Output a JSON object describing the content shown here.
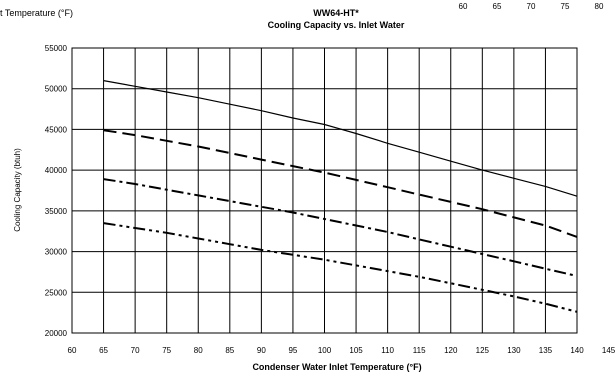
{
  "header": {
    "left_fragment": "t Temperature (°F)",
    "top_right_ticks": [
      "60",
      "65",
      "70",
      "75",
      "80"
    ]
  },
  "chart_data": {
    "type": "line",
    "title": "WW64-HT*",
    "subtitle": "Cooling Capacity vs. Inlet Water",
    "xlabel": "Condenser Water Inlet Temperature (°F)",
    "ylabel": "Cooling Capacity (btuh)",
    "xlim": [
      60,
      140
    ],
    "ylim": [
      20000,
      55000
    ],
    "xticks": [
      "60",
      "65",
      "70",
      "75",
      "80",
      "85",
      "90",
      "95",
      "100",
      "105",
      "110",
      "115",
      "120",
      "125",
      "130",
      "135",
      "140",
      "145"
    ],
    "yticks": [
      "20000",
      "25000",
      "30000",
      "35000",
      "40000",
      "45000",
      "50000",
      "55000"
    ],
    "grid": true,
    "legend": "none",
    "series": [
      {
        "style": "solid",
        "x": [
          65,
          70,
          75,
          80,
          85,
          90,
          95,
          100,
          105,
          110,
          115,
          120,
          125,
          130,
          135,
          140
        ],
        "values": [
          51000,
          50300,
          49600,
          48900,
          48100,
          47300,
          46400,
          45600,
          44500,
          43300,
          42200,
          41100,
          40000,
          39000,
          38000,
          36800
        ]
      },
      {
        "style": "dash",
        "x": [
          65,
          70,
          75,
          80,
          85,
          90,
          95,
          100,
          105,
          110,
          115,
          120,
          125,
          130,
          135,
          140
        ],
        "values": [
          44900,
          44300,
          43600,
          42900,
          42100,
          41300,
          40500,
          39700,
          38800,
          37900,
          37000,
          36100,
          35200,
          34200,
          33200,
          31800
        ]
      },
      {
        "style": "dashdot",
        "x": [
          65,
          70,
          75,
          80,
          85,
          90,
          95,
          100,
          105,
          110,
          115,
          120,
          125,
          130,
          135,
          140
        ],
        "values": [
          38900,
          38300,
          37600,
          36900,
          36200,
          35500,
          34800,
          34000,
          33200,
          32400,
          31500,
          30600,
          29700,
          28800,
          27900,
          27000
        ]
      },
      {
        "style": "dashdotdot",
        "x": [
          65,
          70,
          75,
          80,
          85,
          90,
          95,
          100,
          105,
          110,
          115,
          120,
          125,
          130,
          135,
          140
        ],
        "values": [
          33500,
          32900,
          32300,
          31600,
          30900,
          30200,
          29600,
          29000,
          28300,
          27600,
          26900,
          26100,
          25300,
          24500,
          23600,
          22600
        ]
      }
    ]
  }
}
